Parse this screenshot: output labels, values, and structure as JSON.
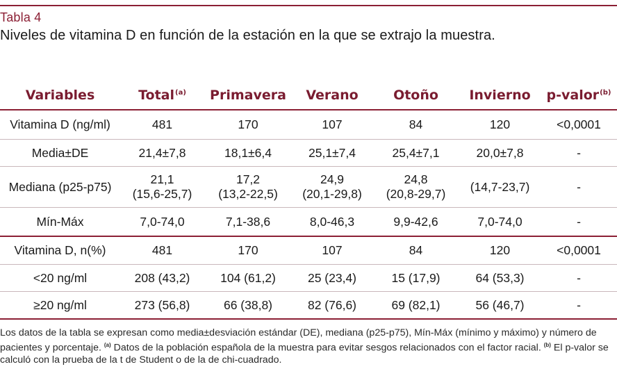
{
  "tabla": "Tabla 4",
  "caption": "Niveles de vitamina D en función de la estación en la que se extrajo la muestra.",
  "headers": {
    "variables": "Variables",
    "total": "Total",
    "total_note": "(a)",
    "primavera": "Primavera",
    "verano": "Verano",
    "otono": "Otoño",
    "invierno": "Invierno",
    "pvalor": "p-valor",
    "pvalor_note": "(b)"
  },
  "rows": [
    {
      "label": "Vitamina D (ng/ml)",
      "total": "481",
      "primavera": "170",
      "verano": "107",
      "otono": "84",
      "invierno": "120",
      "p": "<0,0001"
    },
    {
      "label": "Media±DE",
      "total": "21,4±7,8",
      "primavera": "18,1±6,4",
      "verano": "25,1±7,4",
      "otono": "25,4±7,1",
      "invierno": "20,0±7,8",
      "p": "-"
    },
    {
      "label": "Mediana (p25-p75)",
      "total": "21,1",
      "total2": "(15,6-25,7)",
      "primavera": "17,2",
      "primavera2": "(13,2-22,5)",
      "verano": "24,9",
      "verano2": "(20,1-29,8)",
      "otono": "24,8",
      "otono2": "(20,8-29,7)",
      "invierno": "(14,7-23,7)",
      "p": "-"
    },
    {
      "label": "Mín-Máx",
      "total": "7,0-74,0",
      "primavera": "7,1-38,6",
      "verano": "8,0-46,3",
      "otono": "9,9-42,6",
      "invierno": "7,0-74,0",
      "p": "-"
    },
    {
      "label": "Vitamina D, n(%)",
      "total": "481",
      "primavera": "170",
      "verano": "107",
      "otono": "84",
      "invierno": "120",
      "p": "<0,0001"
    },
    {
      "label": "<20 ng/ml",
      "total": "208 (43,2)",
      "primavera": "104 (61,2)",
      "verano": "25 (23,4)",
      "otono": "15 (17,9)",
      "invierno": "64 (53,3)",
      "p": "-"
    },
    {
      "label": "≥20 ng/ml",
      "total": "273 (56,8)",
      "primavera": "66 (38,8)",
      "verano": "82 (76,6)",
      "otono": "69 (82,1)",
      "invierno": "56 (46,7)",
      "p": "-"
    }
  ],
  "footnote": {
    "part1": "Los datos de la tabla se expresan como media±desviación estándar (DE), mediana (p25-p75), Mín-Máx (mínimo y máximo) y número de pacientes y porcentaje.",
    "note_a": "(a)",
    "part2": "Datos de la población española de la muestra para evitar sesgos relacionados con el factor racial.",
    "note_b": "(b)",
    "part3": "El p-valor se calculó con la prueba de la t de Student o de la de chi-cuadrado."
  }
}
